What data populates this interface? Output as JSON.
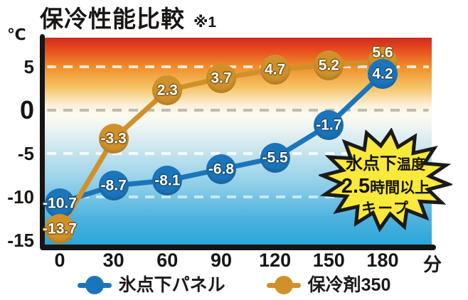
{
  "header": {
    "title": "保冷性能比較",
    "title_note": "※1"
  },
  "axes": {
    "y_unit": "℃",
    "x_unit": "分"
  },
  "badge": {
    "line1_main": "氷点下",
    "line1_small": "温度",
    "line2_big": "2.5",
    "line2_rest": "時間以上",
    "line3": "キープ",
    "fill_color": "#f9e93b",
    "border_color": "#1a1a1a"
  },
  "chart_data": {
    "type": "line",
    "title": "保冷性能比較 ※1",
    "x": [
      0,
      30,
      60,
      90,
      120,
      150,
      180
    ],
    "x_tick_labels": [
      "0",
      "30",
      "60",
      "90",
      "120",
      "150",
      "180"
    ],
    "x_unit": "分",
    "y_ticks": [
      5,
      0,
      -5,
      -10,
      -15
    ],
    "y_unit": "℃",
    "ylim": [
      -16,
      8.4
    ],
    "xlim": [
      0,
      190
    ],
    "grid": "horizontal-dashed",
    "legend_position": "bottom-center",
    "series": [
      {
        "name": "氷点下パネル",
        "color": "#1b75bb",
        "dark_color": "#14496f",
        "values": [
          -10.7,
          -8.7,
          -8.1,
          -6.8,
          -5.5,
          -1.7,
          4.2
        ]
      },
      {
        "name": "保冷剤350",
        "color": "#d0912b",
        "dark_color": "#7c5410",
        "values": [
          -13.7,
          -3.3,
          2.3,
          3.7,
          4.7,
          5.2,
          5.6
        ]
      }
    ],
    "annotation": "氷点下温度 2.5時間以上 キープ"
  }
}
